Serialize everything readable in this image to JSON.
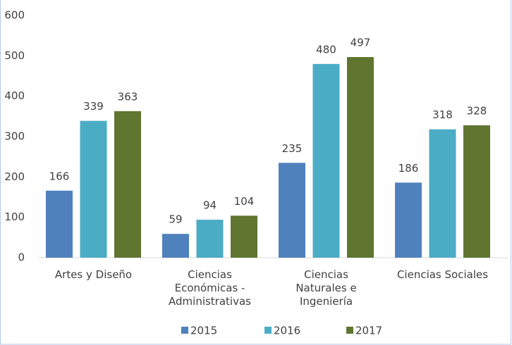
{
  "chart_data": {
    "type": "bar",
    "categories": [
      "Artes y Diseño",
      "Ciencias Económicas - Administrativas",
      "Ciencias Naturales e Ingeniería",
      "Ciencias Sociales"
    ],
    "series": [
      {
        "name": "2015",
        "color": "#4f81bd",
        "values": [
          166,
          59,
          235,
          186
        ]
      },
      {
        "name": "2016",
        "color": "#4bacc6",
        "values": [
          339,
          94,
          480,
          318
        ]
      },
      {
        "name": "2017",
        "color": "#5f7530",
        "values": [
          363,
          104,
          497,
          328
        ]
      }
    ],
    "ylim": [
      0,
      600
    ],
    "yticks": [
      0,
      100,
      200,
      300,
      400,
      500,
      600
    ],
    "grid": false,
    "legend": "bottom"
  }
}
